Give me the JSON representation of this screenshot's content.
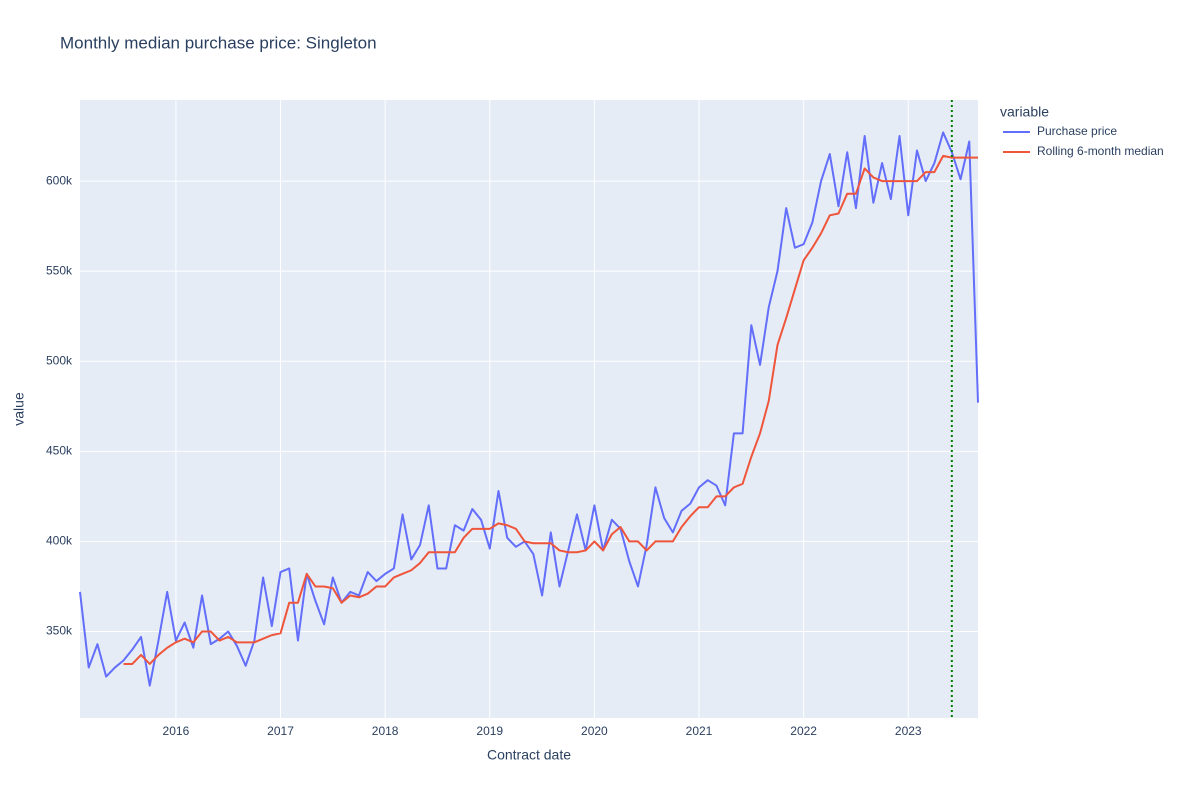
{
  "chart_data": {
    "type": "line",
    "title": "Monthly median purchase price: Singleton",
    "x_label": "Contract date",
    "y_label": "value",
    "legend_title": "variable",
    "legend_position": "right",
    "grid": true,
    "x": [
      "2015-02",
      "2015-03",
      "2015-04",
      "2015-05",
      "2015-06",
      "2015-07",
      "2015-08",
      "2015-09",
      "2015-10",
      "2015-11",
      "2015-12",
      "2016-01",
      "2016-02",
      "2016-03",
      "2016-04",
      "2016-05",
      "2016-06",
      "2016-07",
      "2016-08",
      "2016-09",
      "2016-10",
      "2016-11",
      "2016-12",
      "2017-01",
      "2017-02",
      "2017-03",
      "2017-04",
      "2017-05",
      "2017-06",
      "2017-07",
      "2017-08",
      "2017-09",
      "2017-10",
      "2017-11",
      "2017-12",
      "2018-01",
      "2018-02",
      "2018-03",
      "2018-04",
      "2018-05",
      "2018-06",
      "2018-07",
      "2018-08",
      "2018-09",
      "2018-10",
      "2018-11",
      "2018-12",
      "2019-01",
      "2019-02",
      "2019-03",
      "2019-04",
      "2019-05",
      "2019-06",
      "2019-07",
      "2019-08",
      "2019-09",
      "2019-10",
      "2019-11",
      "2019-12",
      "2020-01",
      "2020-02",
      "2020-03",
      "2020-04",
      "2020-05",
      "2020-06",
      "2020-07",
      "2020-08",
      "2020-09",
      "2020-10",
      "2020-11",
      "2020-12",
      "2021-01",
      "2021-02",
      "2021-03",
      "2021-04",
      "2021-05",
      "2021-06",
      "2021-07",
      "2021-08",
      "2021-09",
      "2021-10",
      "2021-11",
      "2021-12",
      "2022-01",
      "2022-02",
      "2022-03",
      "2022-04",
      "2022-05",
      "2022-06",
      "2022-07",
      "2022-08",
      "2022-09",
      "2022-10",
      "2022-11",
      "2022-12",
      "2023-01",
      "2023-02",
      "2023-03",
      "2023-04",
      "2023-05",
      "2023-06",
      "2023-07",
      "2023-08",
      "2023-09"
    ],
    "series": [
      {
        "name": "Purchase price",
        "color": "#636efa",
        "values": [
          372000,
          330000,
          343000,
          325000,
          330000,
          334000,
          340000,
          347000,
          320000,
          345000,
          372000,
          345000,
          355000,
          341000,
          370000,
          343000,
          346000,
          350000,
          342000,
          331000,
          345000,
          380000,
          353000,
          383000,
          385000,
          345000,
          382000,
          367000,
          354000,
          380000,
          366000,
          372000,
          370000,
          383000,
          378000,
          382000,
          385000,
          415000,
          390000,
          398000,
          420000,
          385000,
          385000,
          409000,
          406000,
          418000,
          412000,
          396000,
          428000,
          402000,
          397000,
          400000,
          393000,
          370000,
          405000,
          375000,
          395000,
          415000,
          395000,
          420000,
          395000,
          412000,
          407000,
          389000,
          375000,
          398000,
          430000,
          413000,
          405000,
          417000,
          421000,
          430000,
          434000,
          431000,
          420000,
          460000,
          460000,
          520000,
          498000,
          530000,
          550000,
          585000,
          563000,
          565000,
          577000,
          600000,
          615000,
          586000,
          616000,
          585000,
          625000,
          588000,
          610000,
          590000,
          625000,
          581000,
          617000,
          600000,
          610000,
          627000,
          616000,
          601000,
          622000,
          477000
        ]
      },
      {
        "name": "Rolling 6-month median",
        "color": "#ef553b",
        "values": [
          null,
          null,
          null,
          null,
          null,
          332000,
          332000,
          337000,
          332000,
          337000,
          341000,
          344000,
          346000,
          344000,
          350000,
          350000,
          345000,
          347000,
          344000,
          344000,
          344000,
          346000,
          348000,
          349000,
          366000,
          366000,
          382000,
          375000,
          375000,
          374000,
          366000,
          370000,
          369000,
          371000,
          375000,
          375000,
          380000,
          382000,
          384000,
          388000,
          394000,
          394000,
          394000,
          394000,
          402000,
          407000,
          407000,
          407000,
          410000,
          409000,
          407000,
          400000,
          399000,
          399000,
          399000,
          395000,
          394000,
          394000,
          395000,
          400000,
          395000,
          404000,
          408000,
          400000,
          400000,
          395000,
          400000,
          400000,
          400000,
          408000,
          414000,
          419000,
          419000,
          425000,
          425000,
          430000,
          432000,
          447000,
          460000,
          478000,
          509000,
          524000,
          540000,
          556000,
          563000,
          571000,
          581000,
          582000,
          593000,
          593000,
          607000,
          602000,
          600000,
          600000,
          600000,
          600000,
          600000,
          605000,
          605000,
          614000,
          613000,
          613000,
          613000,
          613000
        ]
      }
    ],
    "xlim": [
      "2015-02",
      "2023-09"
    ],
    "xticks": [
      "2016",
      "2017",
      "2018",
      "2019",
      "2020",
      "2021",
      "2022",
      "2023"
    ],
    "ylim": [
      302000,
      645000
    ],
    "yticks": [
      {
        "value": 350000,
        "label": "350k"
      },
      {
        "value": 400000,
        "label": "400k"
      },
      {
        "value": 450000,
        "label": "450k"
      },
      {
        "value": 500000,
        "label": "500k"
      },
      {
        "value": 550000,
        "label": "550k"
      },
      {
        "value": 600000,
        "label": "600k"
      }
    ],
    "vline": {
      "x": "2023-06",
      "color": "#008000",
      "dash": "dotted"
    }
  }
}
